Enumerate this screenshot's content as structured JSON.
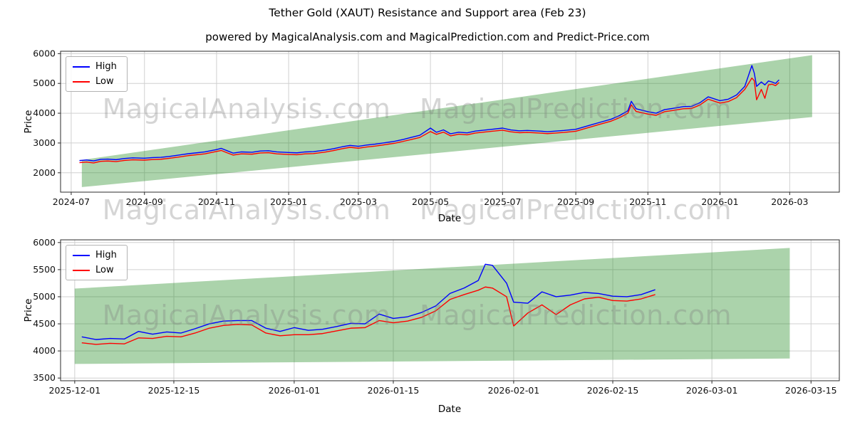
{
  "page": {
    "title": "Tether Gold (XAUT) Resistance and Support area (Feb 23)"
  },
  "watermarks": {
    "left_text": "MagicalAnalysis.com",
    "right_text": "MagicalPrediction.com"
  },
  "chart_data": [
    {
      "type": "line",
      "title": "powered by MagicalAnalysis.com and MagicalPrediction.com and Predict-Price.com",
      "xlabel": "Date",
      "ylabel": "Price",
      "grid": true,
      "legend_position": "upper left",
      "x_domain": [
        "2024-06-22",
        "2026-04-12"
      ],
      "y_domain": [
        1350,
        6080
      ],
      "yticks": [
        2000,
        3000,
        4000,
        5000,
        6000
      ],
      "xticks": [
        {
          "label": "2024-07",
          "date": "2024-07-01"
        },
        {
          "label": "2024-09",
          "date": "2024-09-01"
        },
        {
          "label": "2024-11",
          "date": "2024-11-01"
        },
        {
          "label": "2025-01",
          "date": "2025-01-01"
        },
        {
          "label": "2025-03",
          "date": "2025-03-01"
        },
        {
          "label": "2025-05",
          "date": "2025-05-01"
        },
        {
          "label": "2025-07",
          "date": "2025-07-01"
        },
        {
          "label": "2025-09",
          "date": "2025-09-01"
        },
        {
          "label": "2025-11",
          "date": "2025-11-01"
        },
        {
          "label": "2026-01",
          "date": "2026-01-01"
        },
        {
          "label": "2026-03",
          "date": "2026-03-01"
        }
      ],
      "band": {
        "x": [
          "2024-07-10",
          "2026-03-20"
        ],
        "upper": [
          2430,
          5950
        ],
        "lower": [
          1520,
          3870
        ],
        "color": "#228B22",
        "opacity": 0.38
      },
      "x": [
        "2024-07-08",
        "2024-07-14",
        "2024-07-20",
        "2024-07-26",
        "2024-08-01",
        "2024-08-08",
        "2024-08-15",
        "2024-08-22",
        "2024-09-01",
        "2024-09-08",
        "2024-09-15",
        "2024-09-22",
        "2024-10-01",
        "2024-10-08",
        "2024-10-15",
        "2024-10-22",
        "2024-11-01",
        "2024-11-05",
        "2024-11-10",
        "2024-11-15",
        "2024-11-22",
        "2024-12-01",
        "2024-12-08",
        "2024-12-15",
        "2024-12-22",
        "2025-01-01",
        "2025-01-08",
        "2025-01-15",
        "2025-01-22",
        "2025-02-01",
        "2025-02-08",
        "2025-02-15",
        "2025-02-22",
        "2025-03-01",
        "2025-03-08",
        "2025-03-15",
        "2025-03-22",
        "2025-04-01",
        "2025-04-08",
        "2025-04-15",
        "2025-04-22",
        "2025-05-01",
        "2025-05-06",
        "2025-05-12",
        "2025-05-18",
        "2025-05-25",
        "2025-06-01",
        "2025-06-08",
        "2025-06-15",
        "2025-06-22",
        "2025-07-01",
        "2025-07-08",
        "2025-07-15",
        "2025-07-22",
        "2025-08-01",
        "2025-08-08",
        "2025-08-15",
        "2025-08-22",
        "2025-09-01",
        "2025-09-08",
        "2025-09-15",
        "2025-09-22",
        "2025-10-01",
        "2025-10-08",
        "2025-10-15",
        "2025-10-18",
        "2025-10-22",
        "2025-11-01",
        "2025-11-08",
        "2025-11-15",
        "2025-11-22",
        "2025-12-01",
        "2025-12-08",
        "2025-12-15",
        "2025-12-22",
        "2026-01-01",
        "2026-01-08",
        "2026-01-15",
        "2026-01-22",
        "2026-01-28",
        "2026-01-30",
        "2026-02-01",
        "2026-02-05",
        "2026-02-08",
        "2026-02-11",
        "2026-02-14",
        "2026-02-17",
        "2026-02-20"
      ],
      "series": [
        {
          "name": "High",
          "color": "#0000ff",
          "values": [
            2410,
            2430,
            2400,
            2450,
            2460,
            2440,
            2480,
            2500,
            2490,
            2510,
            2520,
            2550,
            2600,
            2640,
            2670,
            2700,
            2780,
            2820,
            2740,
            2660,
            2700,
            2690,
            2730,
            2740,
            2700,
            2680,
            2670,
            2700,
            2710,
            2760,
            2810,
            2870,
            2920,
            2890,
            2930,
            2960,
            3000,
            3060,
            3120,
            3190,
            3260,
            3500,
            3360,
            3440,
            3310,
            3360,
            3340,
            3400,
            3430,
            3460,
            3500,
            3440,
            3410,
            3420,
            3400,
            3380,
            3400,
            3420,
            3460,
            3540,
            3620,
            3700,
            3800,
            3920,
            4080,
            4400,
            4150,
            4050,
            4000,
            4120,
            4160,
            4220,
            4230,
            4350,
            4550,
            4420,
            4470,
            4610,
            4900,
            5600,
            5350,
            4900,
            5050,
            4950,
            5080,
            5050,
            5000,
            5120
          ]
        },
        {
          "name": "Low",
          "color": "#ff0000",
          "values": [
            2340,
            2360,
            2330,
            2385,
            2395,
            2375,
            2415,
            2435,
            2425,
            2445,
            2455,
            2485,
            2535,
            2575,
            2605,
            2635,
            2715,
            2750,
            2670,
            2595,
            2635,
            2625,
            2665,
            2675,
            2635,
            2615,
            2605,
            2635,
            2645,
            2695,
            2745,
            2805,
            2855,
            2825,
            2865,
            2895,
            2935,
            2995,
            3055,
            3120,
            3185,
            3385,
            3290,
            3365,
            3240,
            3295,
            3275,
            3335,
            3365,
            3395,
            3430,
            3375,
            3345,
            3355,
            3335,
            3315,
            3335,
            3355,
            3395,
            3475,
            3555,
            3635,
            3735,
            3850,
            4000,
            4280,
            4060,
            3970,
            3930,
            4050,
            4090,
            4150,
            4160,
            4275,
            4470,
            4340,
            4390,
            4520,
            4800,
            5180,
            5090,
            4450,
            4800,
            4500,
            4950,
            4975,
            4925,
            5030
          ]
        }
      ]
    },
    {
      "type": "line",
      "title": "",
      "xlabel": "Date",
      "ylabel": "Price",
      "grid": true,
      "legend_position": "upper left",
      "x_domain": [
        "2025-11-29",
        "2026-03-19"
      ],
      "y_domain": [
        3450,
        6050
      ],
      "yticks": [
        3500,
        4000,
        4500,
        5000,
        5500,
        6000
      ],
      "xticks": [
        {
          "label": "2025-12-01",
          "date": "2025-12-01"
        },
        {
          "label": "2025-12-15",
          "date": "2025-12-15"
        },
        {
          "label": "2026-01-01",
          "date": "2026-01-01"
        },
        {
          "label": "2026-01-15",
          "date": "2026-01-15"
        },
        {
          "label": "2026-02-01",
          "date": "2026-02-01"
        },
        {
          "label": "2026-02-15",
          "date": "2026-02-15"
        },
        {
          "label": "2026-03-01",
          "date": "2026-03-01"
        },
        {
          "label": "2026-03-15",
          "date": "2026-03-15"
        }
      ],
      "band": {
        "x": [
          "2025-12-01",
          "2026-03-12"
        ],
        "upper": [
          5150,
          5900
        ],
        "lower": [
          3760,
          3860
        ],
        "color": "#228B22",
        "opacity": 0.38
      },
      "x": [
        "2025-12-02",
        "2025-12-04",
        "2025-12-06",
        "2025-12-08",
        "2025-12-10",
        "2025-12-12",
        "2025-12-14",
        "2025-12-16",
        "2025-12-18",
        "2025-12-20",
        "2025-12-22",
        "2025-12-24",
        "2025-12-26",
        "2025-12-28",
        "2025-12-30",
        "2026-01-01",
        "2026-01-03",
        "2026-01-05",
        "2026-01-07",
        "2026-01-09",
        "2026-01-11",
        "2026-01-13",
        "2026-01-15",
        "2026-01-17",
        "2026-01-19",
        "2026-01-21",
        "2026-01-23",
        "2026-01-25",
        "2026-01-27",
        "2026-01-28",
        "2026-01-29",
        "2026-01-31",
        "2026-02-01",
        "2026-02-03",
        "2026-02-05",
        "2026-02-07",
        "2026-02-09",
        "2026-02-11",
        "2026-02-13",
        "2026-02-15",
        "2026-02-17",
        "2026-02-19",
        "2026-02-21"
      ],
      "series": [
        {
          "name": "High",
          "color": "#0000ff",
          "values": [
            4260,
            4210,
            4230,
            4220,
            4360,
            4310,
            4350,
            4330,
            4410,
            4500,
            4550,
            4560,
            4560,
            4420,
            4360,
            4430,
            4380,
            4400,
            4450,
            4510,
            4500,
            4680,
            4600,
            4630,
            4710,
            4830,
            5060,
            5160,
            5300,
            5600,
            5580,
            5250,
            4900,
            4880,
            5090,
            5000,
            5030,
            5080,
            5060,
            5010,
            5000,
            5040,
            5130
          ]
        },
        {
          "name": "Low",
          "color": "#ff0000",
          "values": [
            4150,
            4120,
            4140,
            4130,
            4240,
            4230,
            4270,
            4260,
            4330,
            4420,
            4470,
            4490,
            4480,
            4330,
            4280,
            4300,
            4300,
            4320,
            4370,
            4420,
            4430,
            4560,
            4520,
            4550,
            4620,
            4740,
            4950,
            5040,
            5120,
            5180,
            5160,
            5000,
            4460,
            4700,
            4850,
            4670,
            4850,
            4960,
            4990,
            4930,
            4920,
            4960,
            5040
          ]
        }
      ]
    }
  ]
}
